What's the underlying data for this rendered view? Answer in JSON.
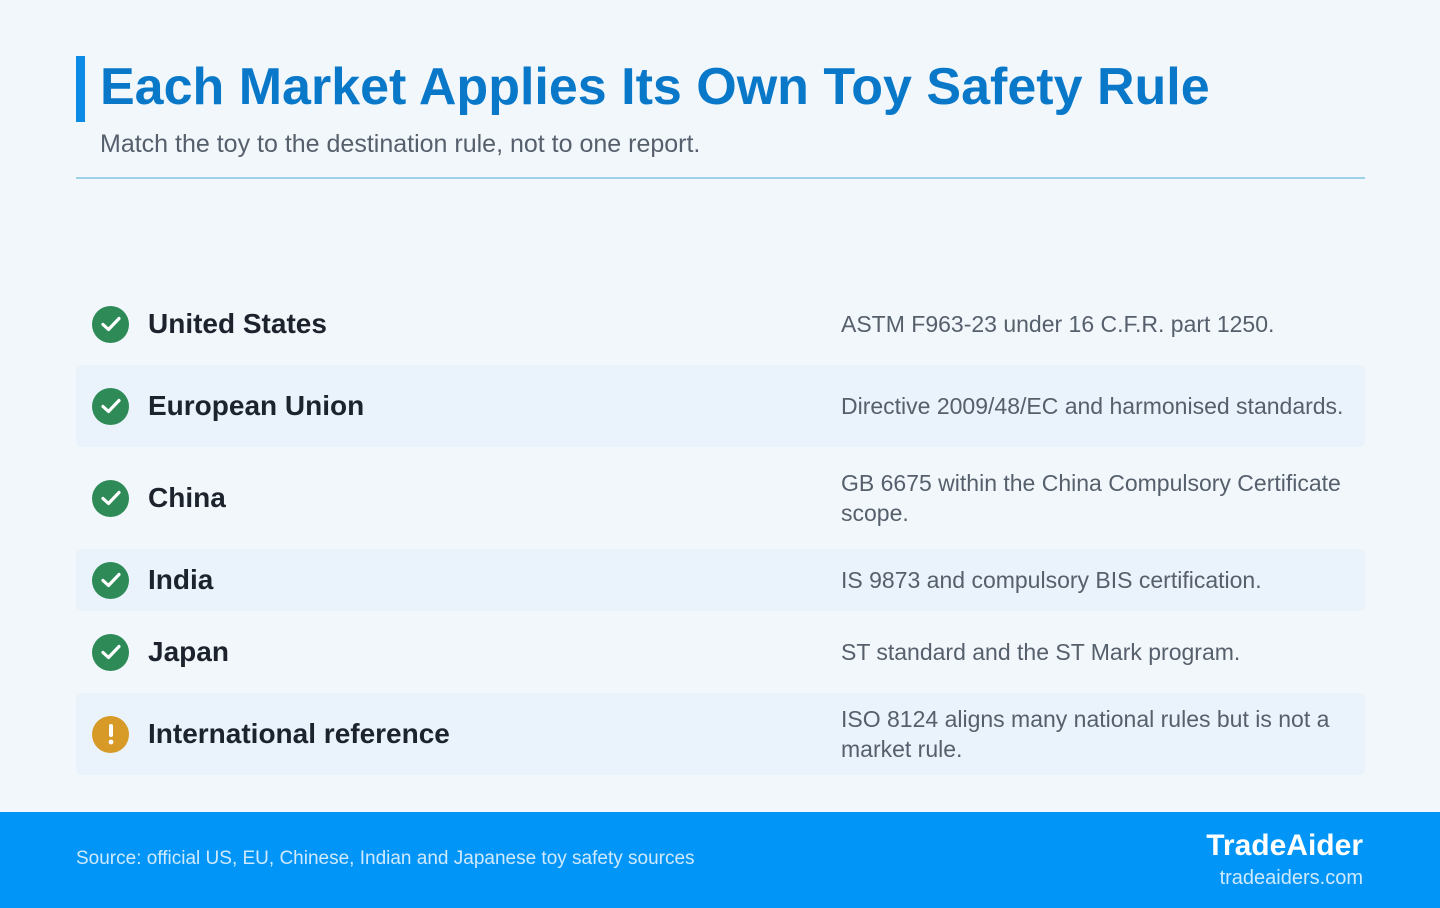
{
  "header": {
    "title": "Each Market Applies Its Own Toy Safety Rule",
    "subtitle": "Match the toy to the destination rule, not to one report."
  },
  "rules": [
    {
      "market": "United States",
      "rule": "ASTM F963-23 under 16 C.F.R. part 1250.",
      "status": "check-icon"
    },
    {
      "market": "European Union",
      "rule": "Directive 2009/48/EC and harmonised standards.",
      "status": "check-icon"
    },
    {
      "market": "China",
      "rule": "GB 6675 within the China Compulsory Certificate scope.",
      "status": "check-icon"
    },
    {
      "market": "India",
      "rule": "IS 9873 and compulsory BIS certification.",
      "status": "check-icon"
    },
    {
      "market": "Japan",
      "rule": "ST standard and the ST Mark program.",
      "status": "check-icon"
    },
    {
      "market": "International reference",
      "rule": "ISO 8124 aligns many national rules but is not a market rule.",
      "status": "warning-icon"
    }
  ],
  "footer": {
    "source": "Source: official US, EU, Chinese, Indian and Japanese toy safety sources",
    "brand": "TradeAider",
    "url": "tradeaiders.com"
  },
  "colors": {
    "accent": "#0a78c8",
    "check": "#2e8b57",
    "warning": "#d79a26",
    "footer": "#0095f7"
  }
}
